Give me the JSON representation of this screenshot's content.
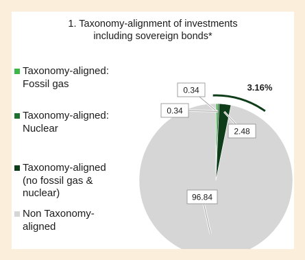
{
  "chart_data": {
    "type": "pie",
    "title": "1. Taxonomy-alignment of investments\nincluding sovereign bonds*",
    "series": [
      {
        "name": "Taxonomy-aligned: Fossil gas",
        "value": 0.34,
        "label": "0.34",
        "color": "#3fb64a"
      },
      {
        "name": "Taxonomy-aligned: Nuclear",
        "value": 0.34,
        "label": "0.34",
        "color": "#1f6f2f"
      },
      {
        "name": "Taxonomy-aligned (no fossil gas & nuclear)",
        "value": 2.48,
        "label": "2.48",
        "color": "#0f3d1a"
      },
      {
        "name": "Non Taxonomy-aligned",
        "value": 96.84,
        "label": "96.84",
        "color": "#d6d6d6"
      }
    ],
    "annotation": "3.16%"
  },
  "legend": [
    {
      "label": "Taxonomy-aligned:\nFossil gas",
      "color": "#3fb64a"
    },
    {
      "label": "Taxonomy-aligned:\nNuclear",
      "color": "#1f6f2f"
    },
    {
      "label": "Taxonomy-aligned\n(no fossil gas &\nnuclear)",
      "color": "#0f3d1a"
    },
    {
      "label": "Non Taxonomy-\naligned",
      "color": "#d6d6d6"
    }
  ]
}
